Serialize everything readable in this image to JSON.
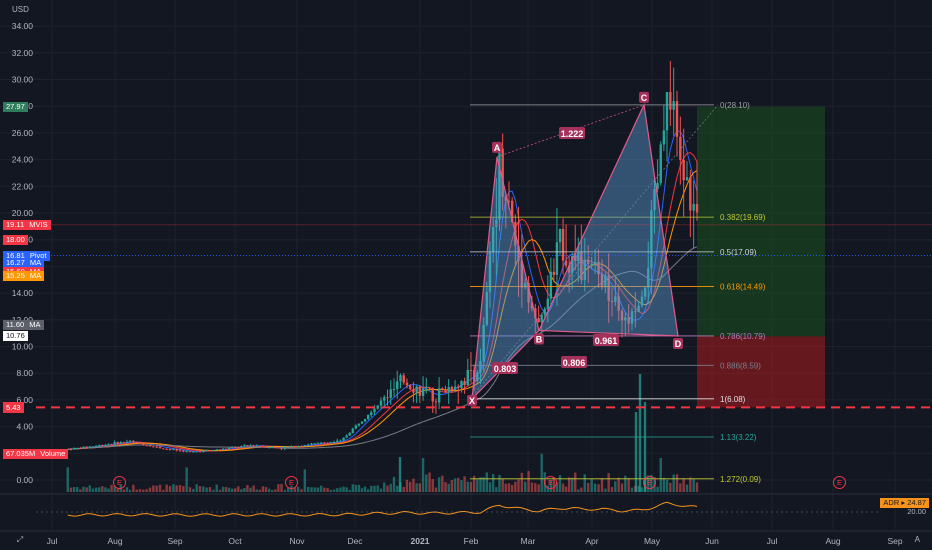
{
  "currency": "USD",
  "price_axis_labels": [
    "34.00",
    "32.00",
    "30.00",
    "28.00",
    "26.00",
    "24.00",
    "22.00",
    "20.00",
    "18.00",
    "16.00",
    "14.00",
    "12.00",
    "10.00",
    "8.00",
    "6.00",
    "4.00",
    "2.00",
    "0.00"
  ],
  "time_axis_labels": [
    "Jul",
    "Aug",
    "Sep",
    "Oct",
    "Nov",
    "Dec",
    "2021",
    "Feb",
    "Mar",
    "Apr",
    "May",
    "Jun",
    "Jul",
    "Aug",
    "Sep"
  ],
  "price_tags": [
    {
      "text": "27.97",
      "color": "#2e7d5b"
    },
    {
      "text": "19.11",
      "name": "MVIS",
      "color": "#f23645"
    },
    {
      "text": "18.00",
      "color": "#f23645"
    },
    {
      "text": "16.81",
      "name": "Pivot",
      "color": "#2962ff"
    },
    {
      "text": "16.27",
      "name": "MA",
      "color": "#2962ff"
    },
    {
      "text": "15.60",
      "name": "MA",
      "color": "#f23645"
    },
    {
      "text": "15.25",
      "name": "MA",
      "color": "#ff9800"
    },
    {
      "text": "11.60",
      "name": "MA",
      "color": "#5d606b"
    },
    {
      "text": "10.76",
      "color": "#ffffff"
    },
    {
      "text": "5.44",
      "color": "#f23645"
    },
    {
      "text": "5.43",
      "color": "#f23645"
    },
    {
      "text": "67.035M",
      "name": "Volume",
      "color": "#f23645"
    }
  ],
  "pattern_points": [
    "X",
    "A",
    "B",
    "C",
    "D"
  ],
  "ratio_labels": [
    "1.222",
    "0.803",
    "0.806",
    "0.961"
  ],
  "fib_levels": [
    {
      "label": "0(28.10)",
      "color": "#9e9e9e"
    },
    {
      "label": "0.382(19.69)",
      "color": "#c0ca33"
    },
    {
      "label": "0.5(17.09)",
      "color": "#d1d4dc"
    },
    {
      "label": "0.618(14.49)",
      "color": "#ff9800"
    },
    {
      "label": "0.786(10.79)",
      "color": "#b47cbf"
    },
    {
      "label": "0.886(8.59)",
      "color": "#7a7e8c"
    },
    {
      "label": "1(6.08)",
      "color": "#e0e0e0"
    },
    {
      "label": "1.13(3.22)",
      "color": "#26a69a"
    },
    {
      "label": "1.272(0.09)",
      "color": "#c0ca33"
    }
  ],
  "earnings_marker": "E",
  "indicator": {
    "name": "ADR",
    "value": "24.87",
    "low_label": "20.00"
  },
  "colors": {
    "bg": "#131722",
    "up": "#26a69a",
    "down": "#ef5350",
    "harmonic": "#5b9bd5",
    "harmonic_edge": "#e05a8a",
    "long_profit": "#1b5e20",
    "long_loss": "#b71c1c"
  },
  "chart_data": {
    "type": "candlestick",
    "symbol": "MVIS",
    "x": [
      "Jul",
      "Aug",
      "Sep",
      "Oct",
      "Nov",
      "Dec",
      "2021",
      "Feb",
      "Mar",
      "Apr",
      "May",
      "Jun",
      "Jul",
      "Aug",
      "Sep"
    ],
    "ylim": [
      0,
      34
    ],
    "last_price": 19.11,
    "harmonic_pattern": {
      "points": {
        "X": 6.08,
        "A": 24.2,
        "B": 11.2,
        "C": 28.1,
        "D": 10.79
      },
      "ratios": {
        "XB": 0.803,
        "AC": 1.222,
        "BD": 0.806,
        "CD": 0.961
      }
    },
    "fibonacci_retracement": [
      {
        "ratio": 0,
        "price": 28.1
      },
      {
        "ratio": 0.382,
        "price": 19.69
      },
      {
        "ratio": 0.5,
        "price": 17.09
      },
      {
        "ratio": 0.618,
        "price": 14.49
      },
      {
        "ratio": 0.786,
        "price": 10.79
      },
      {
        "ratio": 0.886,
        "price": 8.59
      },
      {
        "ratio": 1,
        "price": 6.08
      },
      {
        "ratio": 1.13,
        "price": 3.22
      },
      {
        "ratio": 1.272,
        "price": 0.09
      }
    ],
    "long_position": {
      "entry": 10.76,
      "target": 27.97,
      "stop": 5.44
    },
    "support_line": 5.44,
    "close_path": [
      [
        "Jul",
        2.3
      ],
      [
        "Jul",
        2.6
      ],
      [
        "Aug",
        2.9
      ],
      [
        "Aug",
        2.4
      ],
      [
        "Sep",
        2.1
      ],
      [
        "Sep",
        2.3
      ],
      [
        "Oct",
        2.6
      ],
      [
        "Oct",
        2.4
      ],
      [
        "Nov",
        2.7
      ],
      [
        "Nov",
        2.9
      ],
      [
        "Dec",
        5.2
      ],
      [
        "Dec",
        7.4
      ],
      [
        "2021",
        6.2
      ],
      [
        "2021",
        7.3
      ],
      [
        "Feb",
        8.5
      ],
      [
        "Feb",
        24.2
      ],
      [
        "Feb",
        16.5
      ],
      [
        "Mar",
        11.2
      ],
      [
        "Mar",
        17.5
      ],
      [
        "Mar",
        15.8
      ],
      [
        "Apr",
        15.2
      ],
      [
        "Apr",
        11.5
      ],
      [
        "Apr",
        12.8
      ],
      [
        "May",
        28.1
      ],
      [
        "May",
        19.11
      ]
    ],
    "indicator": {
      "name": "ADR",
      "value": 24.87
    }
  }
}
